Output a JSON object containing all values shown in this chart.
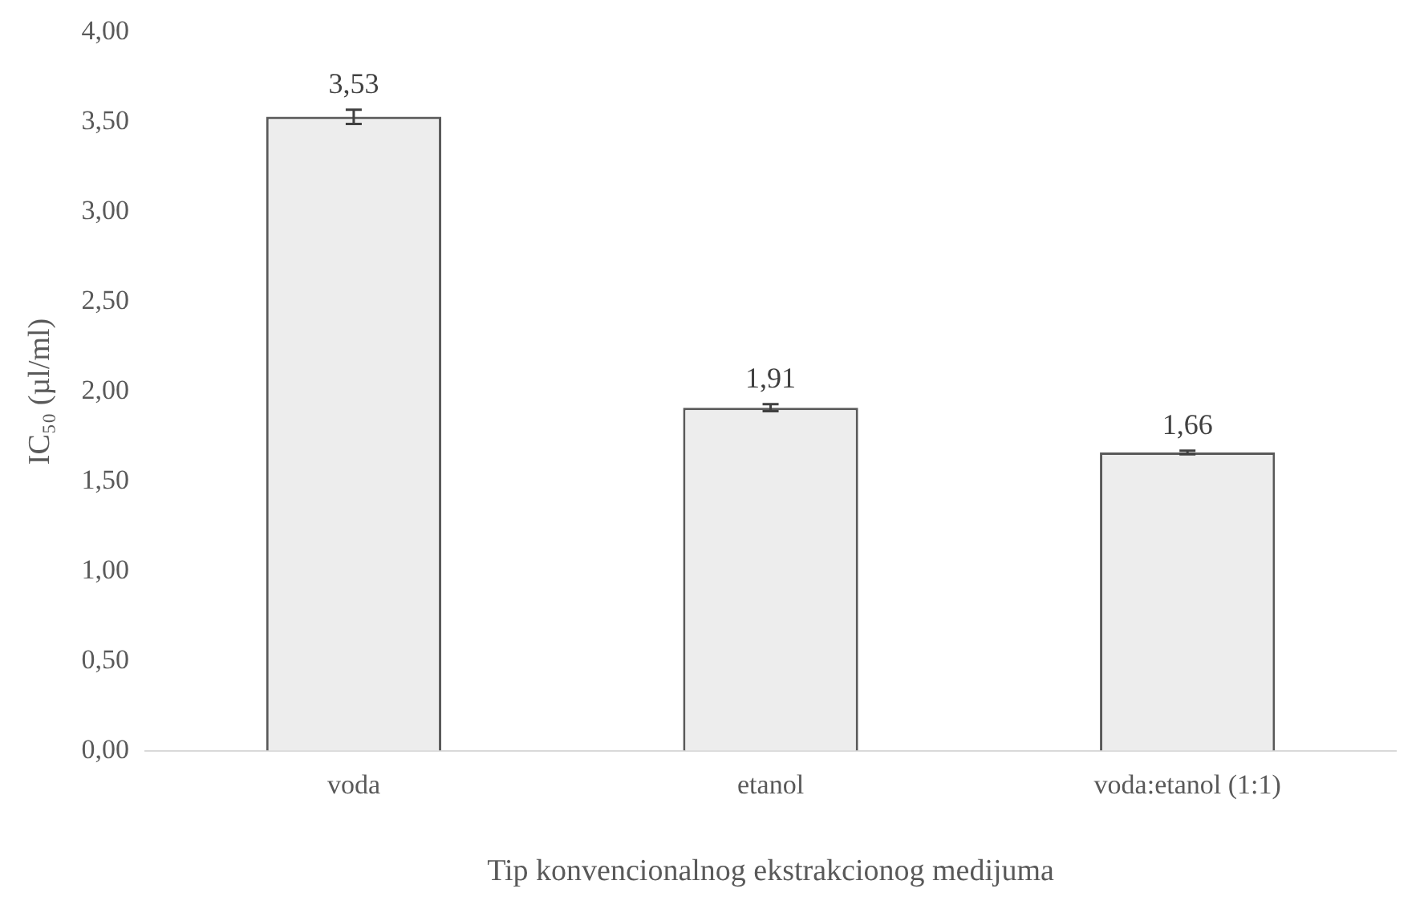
{
  "chart_data": {
    "type": "bar",
    "xlabel": "Tip konvencionalnog ekstrakcionog medijuma",
    "ylabel": "IC₅₀ (µl/ml)",
    "categories": [
      "voda",
      "etanol",
      "voda:etanol (1:1)"
    ],
    "values": [
      3.53,
      1.91,
      1.66
    ],
    "color": "#ededed",
    "errors": [
      0.04,
      0.02,
      0.01
    ],
    "value_labels": [
      "3,53",
      "1,91",
      "1,66"
    ],
    "ylim": [
      0,
      4
    ],
    "yticks": [
      {
        "value": 0,
        "label": "0,00"
      },
      {
        "value": 0.5,
        "label": "0,50"
      },
      {
        "value": 1,
        "label": "1,00"
      },
      {
        "value": 1.5,
        "label": "1,50"
      },
      {
        "value": 2,
        "label": "2,00"
      },
      {
        "value": 2.5,
        "label": "2,50"
      },
      {
        "value": 3,
        "label": "3,00"
      },
      {
        "value": 3.5,
        "label": "3,50"
      },
      {
        "value": 4,
        "label": "4,00"
      }
    ],
    "grid": false,
    "legend": false
  }
}
